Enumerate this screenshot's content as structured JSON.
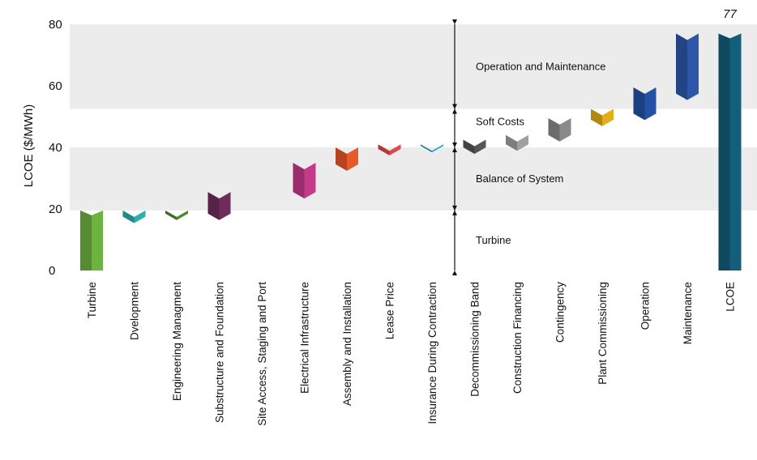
{
  "chart_data": {
    "type": "bar",
    "subtype": "waterfall",
    "ylabel": "LCOE ($/MWh)",
    "ylim": [
      0,
      80
    ],
    "yticks": [
      0,
      20,
      40,
      60,
      80
    ],
    "total_label": "77",
    "categories": [
      "Turbine",
      "Dvelopment",
      "Engineering Managment",
      "Substructure and Foundation",
      "Site Access, Staging and Port",
      "Electrical Infrastructure",
      "Assembly and Installation",
      "Lease Price",
      "Insurance During Contraction",
      "Decommissioning Band",
      "Construction Financing",
      "Contingency",
      "Plant Commissioning",
      "Operation",
      "Maintenance",
      "LCOE"
    ],
    "bars": [
      {
        "start": 0,
        "end": 19.5,
        "color": "#6db33f"
      },
      {
        "start": 19.5,
        "end": 17.5,
        "color": "#2bb0ad"
      },
      {
        "start": 19.5,
        "end": 18.5,
        "color": "#4e8a2c"
      },
      {
        "start": 18.5,
        "end": 25.5,
        "color": "#6e2c5a"
      },
      {
        "start": 25.5,
        "end": 25.5,
        "color": "#b0b0b0"
      },
      {
        "start": 25.5,
        "end": 35.0,
        "color": "#c63a8c"
      },
      {
        "start": 34.5,
        "end": 40.0,
        "color": "#e8592a"
      },
      {
        "start": 39.5,
        "end": 41.0,
        "color": "#df4a46"
      },
      {
        "start": 40.5,
        "end": 41.0,
        "color": "#1aa0d6"
      },
      {
        "start": 40.0,
        "end": 42.5,
        "color": "#555555"
      },
      {
        "start": 41.0,
        "end": 44.0,
        "color": "#a0a0a0"
      },
      {
        "start": 44.0,
        "end": 49.5,
        "color": "#8a8a8a"
      },
      {
        "start": 49.0,
        "end": 52.5,
        "color": "#e3ae14"
      },
      {
        "start": 51.0,
        "end": 59.5,
        "color": "#2451a3"
      },
      {
        "start": 57.5,
        "end": 77.0,
        "color": "#2d57a8"
      },
      {
        "start": 0,
        "end": 77.0,
        "color": "#135e7a"
      }
    ],
    "bands": [
      {
        "label": "Turbine",
        "from": 0,
        "to": 19.5,
        "shaded": false
      },
      {
        "label": "Balance of System",
        "from": 19.5,
        "to": 40.0,
        "shaded": true
      },
      {
        "label": "Soft Costs",
        "from": 40.0,
        "to": 52.5,
        "shaded": false
      },
      {
        "label": "Operation and Maintenance",
        "from": 52.5,
        "to": 77.0,
        "shaded": true
      }
    ]
  }
}
